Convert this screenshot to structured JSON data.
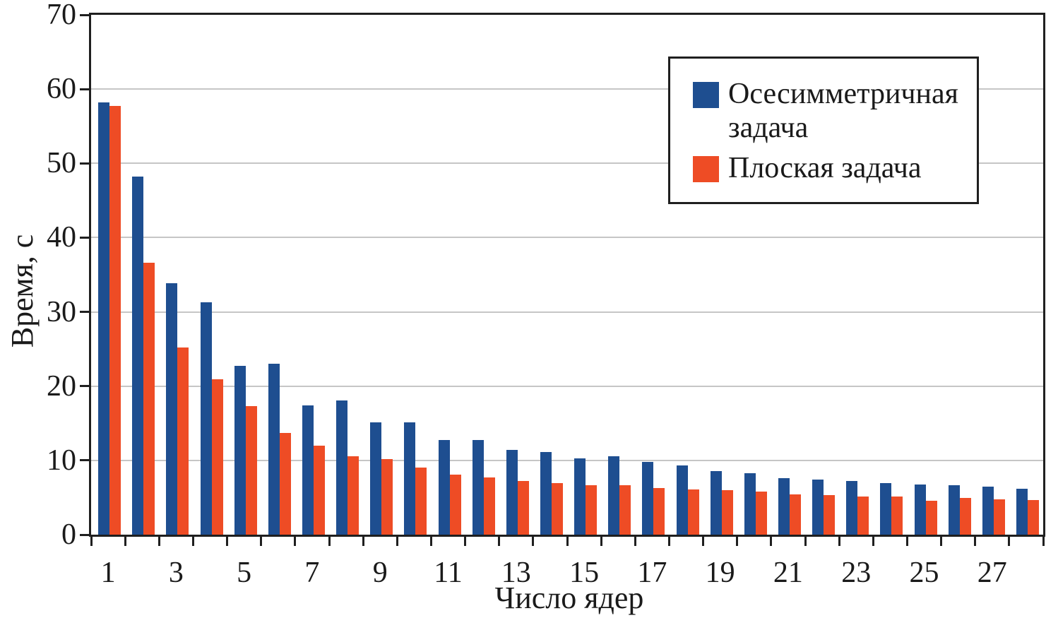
{
  "chart_data": {
    "type": "bar",
    "title": "",
    "xlabel": "Число ядер",
    "ylabel": "Время, с",
    "ylim": [
      0,
      70
    ],
    "yticks": [
      0,
      10,
      20,
      30,
      40,
      50,
      60,
      70
    ],
    "grid": "horizontal",
    "legend_position": "upper right",
    "categories": [
      1,
      2,
      3,
      4,
      5,
      6,
      7,
      8,
      9,
      10,
      11,
      12,
      13,
      14,
      15,
      16,
      17,
      18,
      19,
      20,
      21,
      22,
      23,
      24,
      25,
      26,
      27,
      28
    ],
    "xtick_labels": [
      "1",
      "3",
      "5",
      "7",
      "9",
      "11",
      "13",
      "15",
      "17",
      "19",
      "21",
      "23",
      "25",
      "27"
    ],
    "series": [
      {
        "name": "Осесимметричная задача",
        "color": "#1e4e90",
        "values": [
          58.2,
          48.2,
          33.9,
          31.3,
          22.7,
          23.0,
          17.4,
          18.1,
          15.1,
          15.1,
          12.7,
          12.7,
          11.4,
          11.1,
          10.3,
          10.6,
          9.8,
          9.3,
          8.6,
          8.3,
          7.6,
          7.4,
          7.2,
          6.9,
          6.8,
          6.7,
          6.5,
          6.2
        ]
      },
      {
        "name": "Плоская задача",
        "color": "#ee4c25",
        "values": [
          57.7,
          36.6,
          25.2,
          20.9,
          17.3,
          13.7,
          12.0,
          10.6,
          10.2,
          9.0,
          8.1,
          7.7,
          7.2,
          6.9,
          6.7,
          6.7,
          6.3,
          6.1,
          6.0,
          5.8,
          5.4,
          5.3,
          5.1,
          5.1,
          4.6,
          4.9,
          4.8,
          4.7
        ]
      }
    ],
    "colors": {
      "axis": "#1f1f1f",
      "gridline": "#c6c6c6",
      "background": "#ffffff"
    }
  }
}
